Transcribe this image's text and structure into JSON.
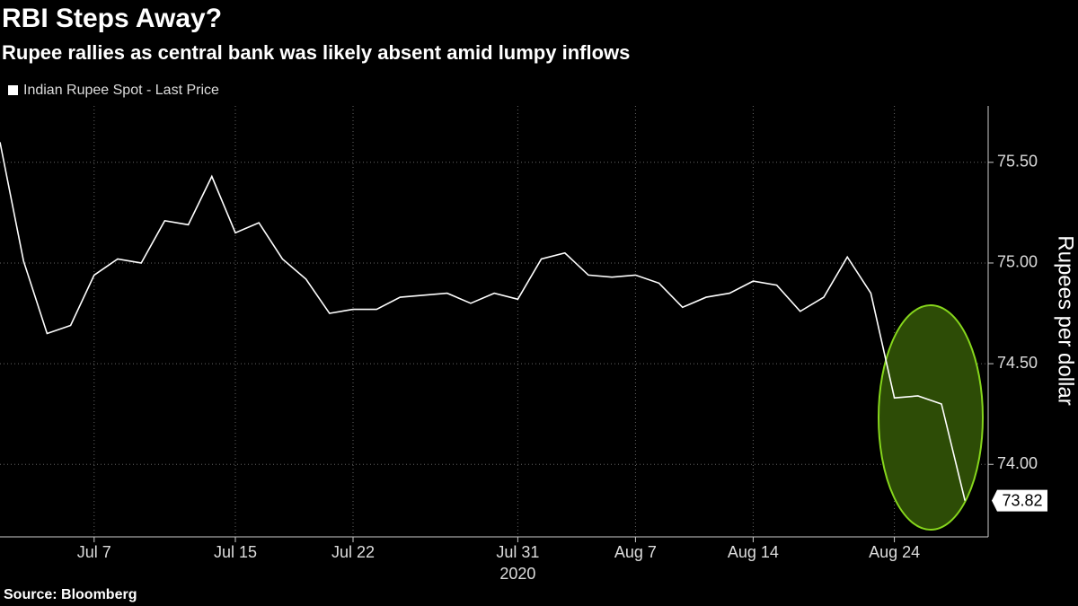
{
  "chart_data": {
    "type": "line",
    "title": "RBI Steps Away?",
    "subtitle": "Rupee rallies as central bank was likely absent amid lumpy inflows",
    "source": "Source: Bloomberg",
    "ylabel": "Rupees per dollar",
    "xlabel": "2020",
    "categories": [
      null,
      null,
      null,
      null,
      "Jul 7",
      null,
      null,
      null,
      null,
      null,
      "Jul 15",
      null,
      null,
      null,
      null,
      "Jul 22",
      null,
      null,
      null,
      null,
      null,
      null,
      "Jul 31",
      null,
      null,
      null,
      null,
      "Aug 7",
      null,
      null,
      null,
      null,
      "Aug 14",
      null,
      null,
      null,
      null,
      null,
      "Aug 24",
      null,
      null,
      null
    ],
    "series": [
      {
        "name": "Indian Rupee Spot - Last Price",
        "color": "#ffffff",
        "values": [
          75.6,
          75.01,
          74.65,
          74.69,
          74.94,
          75.02,
          75.0,
          75.21,
          75.19,
          75.43,
          75.15,
          75.2,
          75.02,
          74.92,
          74.75,
          74.77,
          74.77,
          74.83,
          74.84,
          74.85,
          74.8,
          74.85,
          74.82,
          75.02,
          75.05,
          74.94,
          74.93,
          74.94,
          74.9,
          74.78,
          74.83,
          74.85,
          74.91,
          74.89,
          74.76,
          74.83,
          75.03,
          74.85,
          74.33,
          74.34,
          74.3,
          73.82
        ]
      }
    ],
    "ylim": [
      73.64,
      75.78
    ],
    "yticks": [
      {
        "value": 74,
        "label": "74.00"
      },
      {
        "value": 74.5,
        "label": "74.50"
      },
      {
        "value": 75,
        "label": "75.00"
      },
      {
        "value": 75.5,
        "label": "75.50"
      }
    ],
    "grid": true
  }
}
